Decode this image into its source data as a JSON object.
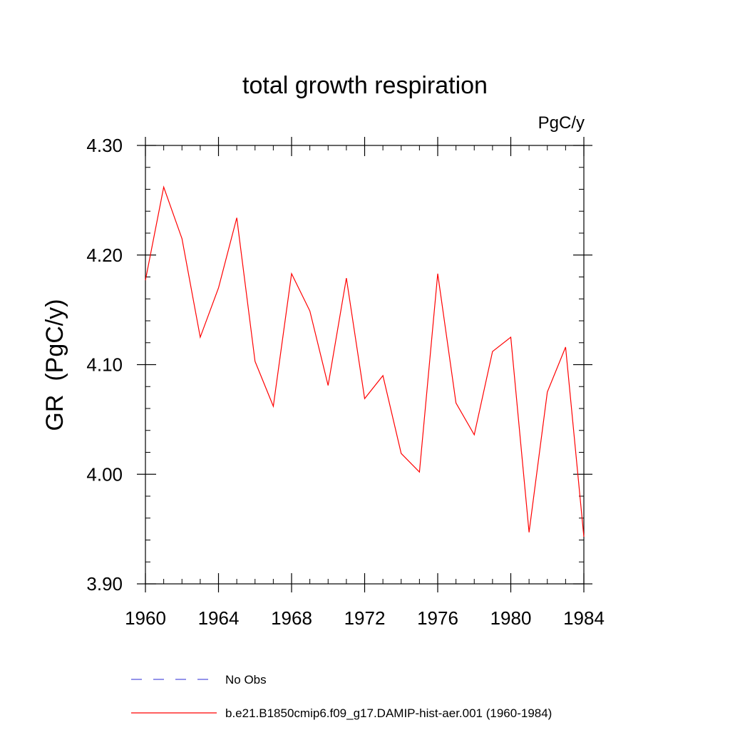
{
  "chart_data": {
    "type": "line",
    "title": "total growth respiration",
    "units_label": "PgC/y",
    "ylabel": "GR  (PgC/y)",
    "xlabel": "",
    "xlim": [
      1960,
      1984
    ],
    "ylim": [
      3.9,
      4.3
    ],
    "x_ticks": [
      1960,
      1964,
      1968,
      1972,
      1976,
      1980,
      1984
    ],
    "y_ticks": [
      3.9,
      4.0,
      4.1,
      4.2,
      4.3
    ],
    "x_tick_labels": [
      "1960",
      "1964",
      "1968",
      "1972",
      "1976",
      "1980",
      "1984"
    ],
    "y_tick_labels": [
      "3.90",
      "4.00",
      "4.10",
      "4.20",
      "4.30"
    ],
    "grid": false,
    "legend_position": "bottom",
    "series": [
      {
        "name": "b.e21.B1850cmip6.f09_g17.DAMIP-hist-aer.001 (1960-1984)",
        "color": "#ff0000",
        "style": "solid",
        "x": [
          1960,
          1961,
          1962,
          1963,
          1964,
          1965,
          1966,
          1967,
          1968,
          1969,
          1970,
          1971,
          1972,
          1973,
          1974,
          1975,
          1976,
          1977,
          1978,
          1979,
          1980,
          1981,
          1982,
          1983,
          1984
        ],
        "values": [
          4.177,
          4.262,
          4.215,
          4.125,
          4.17,
          4.234,
          4.103,
          4.062,
          4.183,
          4.149,
          4.081,
          4.179,
          4.069,
          4.09,
          4.019,
          4.002,
          4.183,
          4.065,
          4.036,
          4.112,
          4.125,
          3.947,
          4.075,
          4.116,
          3.943
        ]
      }
    ],
    "legend": [
      {
        "label": "No Obs",
        "color": "#5555dd",
        "style": "dashed"
      },
      {
        "label": "b.e21.B1850cmip6.f09_g17.DAMIP-hist-aer.001 (1960-1984)",
        "color": "#ff0000",
        "style": "solid"
      }
    ]
  }
}
